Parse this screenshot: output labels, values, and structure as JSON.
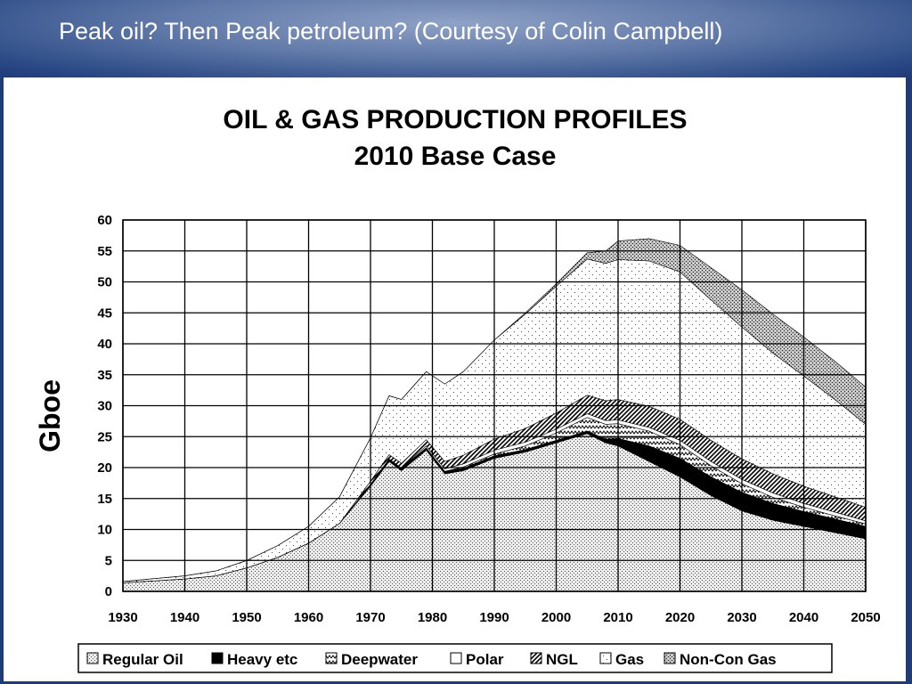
{
  "slide": {
    "title": "Peak oil?  Then Peak petroleum?  (Courtesy of Colin Campbell)"
  },
  "chart_data": {
    "type": "area",
    "stacked": true,
    "title": "OIL & GAS PRODUCTION PROFILES",
    "subtitle": "2010 Base Case",
    "xlabel": "",
    "ylabel": "Gboe",
    "xlim": [
      1930,
      2050
    ],
    "ylim": [
      0,
      60
    ],
    "x_ticks": [
      "1930",
      "1940",
      "1950",
      "1960",
      "1970",
      "1980",
      "1990",
      "2000",
      "2010",
      "2020",
      "2030",
      "2040",
      "2050"
    ],
    "y_ticks": [
      "0",
      "5",
      "10",
      "15",
      "20",
      "25",
      "30",
      "35",
      "40",
      "45",
      "50",
      "55",
      "60"
    ],
    "grid": true,
    "legend_position": "bottom",
    "x": [
      1930,
      1940,
      1945,
      1950,
      1955,
      1960,
      1965,
      1970,
      1973,
      1975,
      1979,
      1982,
      1985,
      1990,
      1995,
      2000,
      2005,
      2008,
      2010,
      2015,
      2020,
      2025,
      2030,
      2035,
      2040,
      2045,
      2050
    ],
    "series": [
      {
        "name": "Regular Oil",
        "pattern": "dots-dense",
        "values": [
          1.4,
          2.0,
          2.5,
          3.8,
          5.5,
          7.8,
          11,
          17,
          21,
          19.5,
          22.8,
          19,
          19.5,
          21.5,
          22.5,
          24,
          25.5,
          24,
          23.5,
          21,
          18.5,
          15.5,
          13,
          11.5,
          10.5,
          9.5,
          8.5
        ]
      },
      {
        "name": "Heavy etc",
        "pattern": "solid-black",
        "values": [
          0,
          0,
          0,
          0,
          0,
          0,
          0,
          0.3,
          0.4,
          0.4,
          0.4,
          0.4,
          0.4,
          0.4,
          0.4,
          0.4,
          0.4,
          0.6,
          1.2,
          2.5,
          3.0,
          3.0,
          3.0,
          2.7,
          2.4,
          2.2,
          2.0
        ]
      },
      {
        "name": "Deepwater",
        "pattern": "zigzag",
        "values": [
          0,
          0,
          0,
          0,
          0,
          0,
          0,
          0,
          0,
          0,
          0,
          0,
          0.2,
          0.3,
          0.6,
          1.2,
          2.2,
          2.4,
          2.4,
          2.4,
          2.2,
          1.8,
          1.4,
          1.0,
          0.7,
          0.5,
          0.4
        ]
      },
      {
        "name": "Polar",
        "pattern": "white",
        "values": [
          0,
          0,
          0,
          0,
          0,
          0,
          0,
          0,
          0,
          0,
          0.3,
          0.4,
          0.5,
          0.6,
          0.6,
          0.6,
          0.6,
          0.6,
          0.6,
          0.6,
          0.7,
          0.7,
          0.7,
          0.7,
          0.6,
          0.6,
          0.5
        ]
      },
      {
        "name": "NGL",
        "pattern": "diagonal-hatch",
        "values": [
          0,
          0,
          0,
          0,
          0,
          0,
          0,
          0.5,
          0.7,
          0.8,
          1.0,
          1.2,
          1.4,
          1.8,
          2.2,
          2.6,
          3.0,
          3.2,
          3.3,
          3.4,
          3.4,
          3.4,
          3.3,
          3.1,
          2.8,
          2.5,
          2.2
        ]
      },
      {
        "name": "Gas",
        "pattern": "dots-sparse",
        "values": [
          0.2,
          0.5,
          0.8,
          1.2,
          1.9,
          2.7,
          4.3,
          7.0,
          9.5,
          10.3,
          11.0,
          12.5,
          13.5,
          16.0,
          18.5,
          20.5,
          22.0,
          22.2,
          22.6,
          23.5,
          23.8,
          22.7,
          21.3,
          19.5,
          17.8,
          15.7,
          13.4
        ]
      },
      {
        "name": "Non-Con Gas",
        "pattern": "crosshatch",
        "values": [
          0,
          0,
          0,
          0,
          0,
          0,
          0,
          0,
          0,
          0,
          0,
          0,
          0,
          0,
          0.2,
          0.4,
          1.0,
          2.0,
          3.0,
          3.6,
          4.3,
          5.2,
          6.0,
          6.3,
          6.3,
          6.2,
          6.0
        ]
      }
    ]
  }
}
